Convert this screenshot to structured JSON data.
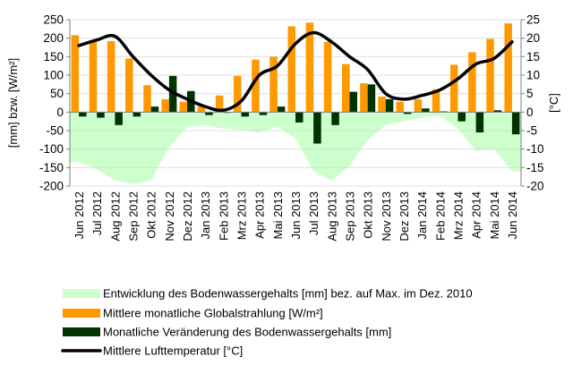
{
  "chart_data": {
    "type": "bar",
    "categories": [
      "Jun 2012",
      "Jul 2012",
      "Aug 2012",
      "Sep 2012",
      "Okt 2012",
      "Nov 2012",
      "Dez 2012",
      "Jan 2013",
      "Feb 2013",
      "Mrz 2013",
      "Apr 2013",
      "Mai 2013",
      "Jun 2013",
      "Jul 2013",
      "Aug 2013",
      "Sep 2013",
      "Okt 2013",
      "Nov 2013",
      "Dez 2013",
      "Jan 2014",
      "Feb 2014",
      "Mrz 2014",
      "Apr 2014",
      "Mai 2014",
      "Jun 2014"
    ],
    "ylabel_left": "[mm]  bzw.  [W/m²]",
    "ylabel_right": "[°C]",
    "ylim_left": [
      -200,
      250
    ],
    "ylim_right": [
      -20,
      25
    ],
    "yticks_left": [
      250,
      200,
      150,
      100,
      50,
      0,
      -50,
      -100,
      -150,
      -200
    ],
    "yticks_right": [
      25,
      20,
      15,
      10,
      5,
      0,
      -5,
      -10,
      -15,
      -20
    ],
    "legend_position": "bottom",
    "series": [
      {
        "name": "Entwicklung des Bodenwassergehalts [mm] bez. auf Max. im Dez. 2010",
        "kind": "area",
        "axis": "left",
        "color": "#ccffcc",
        "values": [
          -135,
          -155,
          -185,
          -195,
          -185,
          -95,
          -40,
          -35,
          -45,
          -48,
          -55,
          -40,
          -70,
          -160,
          -185,
          -145,
          -75,
          -35,
          -25,
          -15,
          -10,
          -45,
          -105,
          -100,
          -160
        ]
      },
      {
        "name": "Mittlere monatliche Globalstrahlung [W/m²]",
        "kind": "bar",
        "axis": "left",
        "color": "#ff9900",
        "values": [
          208,
          190,
          192,
          145,
          73,
          35,
          28,
          15,
          45,
          98,
          142,
          150,
          232,
          242,
          190,
          130,
          78,
          42,
          28,
          35,
          62,
          128,
          162,
          198,
          240
        ]
      },
      {
        "name": "Monatliche Veränderung des Bodenwassergehalts [mm]",
        "kind": "bar",
        "axis": "left",
        "color": "#003300",
        "values": [
          -12,
          -15,
          -35,
          -12,
          15,
          98,
          57,
          -8,
          -2,
          -12,
          -8,
          15,
          -28,
          -85,
          -35,
          55,
          75,
          35,
          -5,
          10,
          2,
          -25,
          -55,
          5,
          -60
        ]
      },
      {
        "name": "Mittlere Lufttemperatur [°C]",
        "kind": "line",
        "axis": "right",
        "color": "#000000",
        "values": [
          18,
          19.5,
          20.5,
          15,
          10,
          6,
          3.5,
          1.5,
          0.5,
          3,
          10,
          12.5,
          18.5,
          21.5,
          19,
          15,
          11.5,
          5,
          3.5,
          4.5,
          6,
          9,
          13,
          14.5,
          19
        ]
      }
    ]
  }
}
